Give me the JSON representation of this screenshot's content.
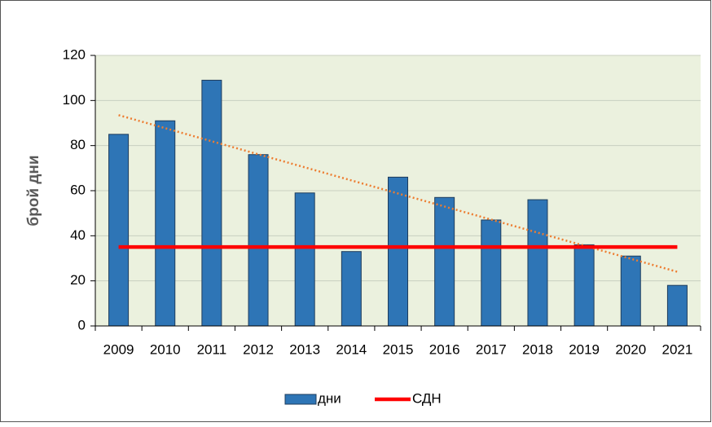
{
  "chart_data": {
    "type": "bar",
    "ylabel": "брой дни",
    "categories": [
      "2009",
      "2010",
      "2011",
      "2012",
      "2013",
      "2014",
      "2015",
      "2016",
      "2017",
      "2018",
      "2019",
      "2020",
      "2021"
    ],
    "series": [
      {
        "name": "дни",
        "type": "bar",
        "color": "#2e75b6",
        "values": [
          85,
          91,
          109,
          76,
          59,
          33,
          66,
          57,
          47,
          56,
          36,
          31,
          18
        ]
      },
      {
        "name": "СДН",
        "type": "line",
        "color": "#ff0000",
        "values": [
          35,
          35,
          35,
          35,
          35,
          35,
          35,
          35,
          35,
          35,
          35,
          35,
          35
        ]
      }
    ],
    "trendline": {
      "of_series": 0,
      "kind": "linear",
      "color": "#ed7d31",
      "style": "dotted"
    },
    "ylim": [
      0,
      120
    ],
    "yticks": [
      0,
      20,
      40,
      60,
      80,
      100,
      120
    ],
    "grid": true,
    "legend": "bottom",
    "plot_background": "#ebf1de"
  }
}
